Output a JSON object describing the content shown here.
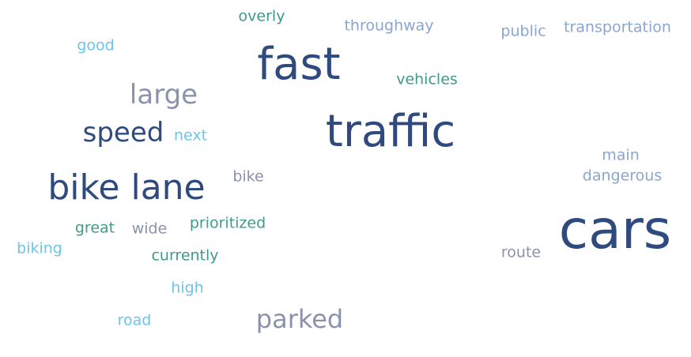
{
  "word_cloud": {
    "colors": {
      "navy": "#2f4a7e",
      "slate": "#8a93ac",
      "sky": "#6cc4ea",
      "teal": "#3f9a86",
      "blue": "#8aa6cf"
    },
    "words": {
      "traffic": "traffic",
      "cars": "cars",
      "fast": "fast",
      "bike_lane": "bike lane",
      "speed": "speed",
      "large": "large",
      "parked": "parked",
      "overly": "overly",
      "throughway": "throughway",
      "public": "public",
      "transportation": "transportation",
      "good": "good",
      "vehicles": "vehicles",
      "next": "next",
      "main": "main",
      "dangerous": "dangerous",
      "bike": "bike",
      "great": "great",
      "wide": "wide",
      "prioritized": "prioritized",
      "biking": "biking",
      "currently": "currently",
      "route": "route",
      "high": "high",
      "road": "road"
    }
  }
}
